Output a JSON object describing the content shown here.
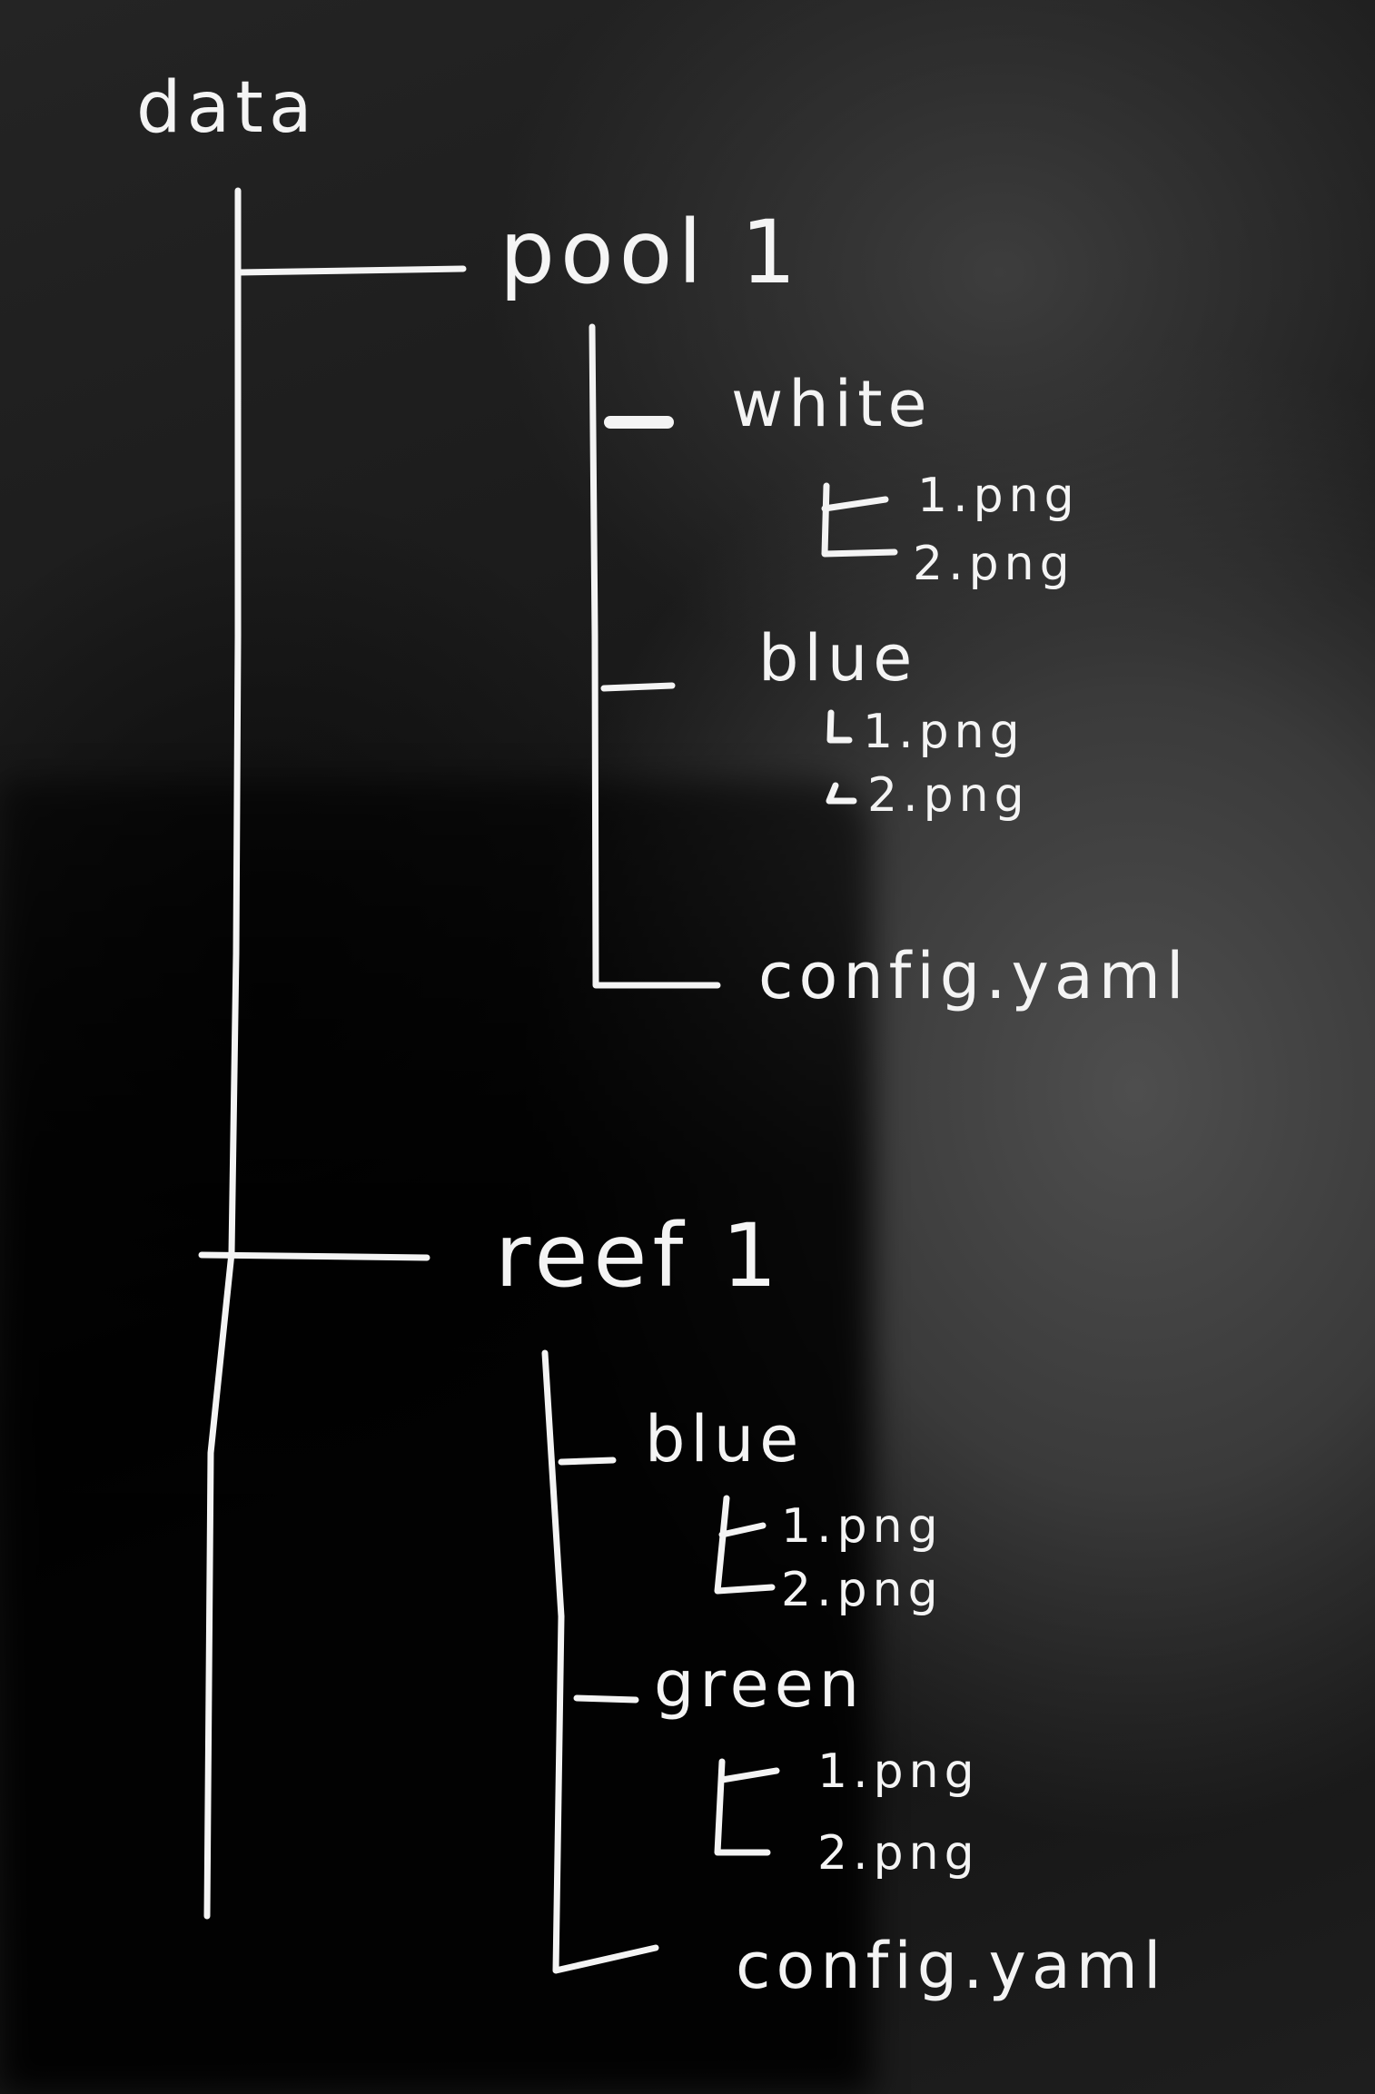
{
  "tree": {
    "root": "data",
    "pool": {
      "name": "pool 1",
      "white": {
        "name": "white",
        "files": [
          "1.png",
          "2.png"
        ]
      },
      "blue": {
        "name": "blue",
        "files": [
          "1.png",
          "2.png"
        ]
      },
      "config": "config.yaml"
    },
    "reef": {
      "name": "reef 1",
      "blue": {
        "name": "blue",
        "files": [
          "1.png",
          "2.png"
        ]
      },
      "green": {
        "name": "green",
        "files": [
          "1.png",
          "2.png"
        ]
      },
      "config": "config.yaml"
    }
  },
  "colors": {
    "ink": "#f4f4f4",
    "board": "#1a1a1a"
  }
}
